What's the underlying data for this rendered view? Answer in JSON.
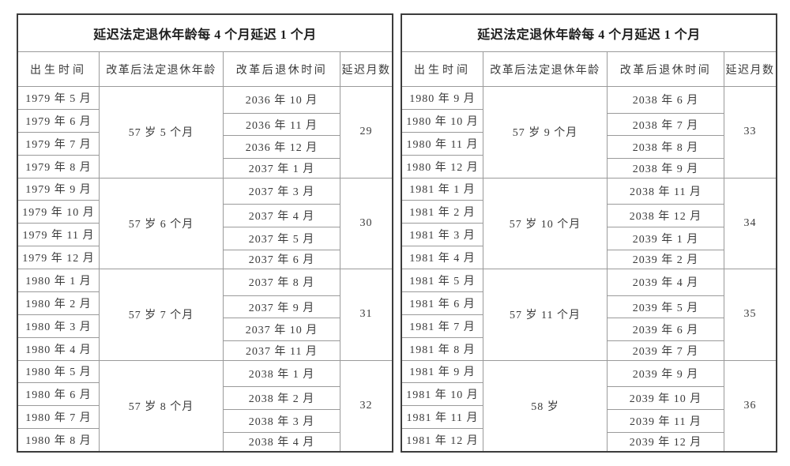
{
  "page": {
    "background": "#ffffff",
    "outer_border_color": "#3c3c3c",
    "grid_line_color": "#9a9a9a",
    "text_color": "#3a3a3a"
  },
  "tables": [
    {
      "title": "延迟法定退休年龄每 4 个月延迟 1 个月",
      "columns": [
        "出生时间",
        "改革后法定退休年龄",
        "改革后退休时间",
        "延迟月数"
      ],
      "groups": [
        {
          "births": [
            "1979 年 5 月",
            "1979 年 6 月",
            "1979 年 7 月",
            "1979 年 8 月"
          ],
          "age": "57 岁 5 个月",
          "retirements": [
            "2036 年 10 月",
            "2036 年 11 月",
            "2036 年 12 月",
            "2037 年 1 月"
          ],
          "delay_months": "29"
        },
        {
          "births": [
            "1979 年 9 月",
            "1979 年 10 月",
            "1979 年 11 月",
            "1979 年 12 月"
          ],
          "age": "57 岁 6 个月",
          "retirements": [
            "2037 年 3 月",
            "2037 年 4 月",
            "2037 年 5 月",
            "2037 年 6 月"
          ],
          "delay_months": "30"
        },
        {
          "births": [
            "1980 年 1 月",
            "1980 年 2 月",
            "1980 年 3 月",
            "1980 年 4 月"
          ],
          "age": "57 岁 7 个月",
          "retirements": [
            "2037 年 8 月",
            "2037 年 9 月",
            "2037 年 10 月",
            "2037 年 11 月"
          ],
          "delay_months": "31"
        },
        {
          "births": [
            "1980 年 5 月",
            "1980 年 6 月",
            "1980 年 7 月",
            "1980 年 8 月"
          ],
          "age": "57 岁 8 个月",
          "retirements": [
            "2038 年 1 月",
            "2038 年 2 月",
            "2038 年 3 月",
            "2038 年 4 月"
          ],
          "delay_months": "32"
        }
      ]
    },
    {
      "title": "延迟法定退休年龄每 4 个月延迟 1 个月",
      "columns": [
        "出生时间",
        "改革后法定退休年龄",
        "改革后退休时间",
        "延迟月数"
      ],
      "groups": [
        {
          "births": [
            "1980 年 9 月",
            "1980 年 10 月",
            "1980 年 11 月",
            "1980 年 12 月"
          ],
          "age": "57 岁 9 个月",
          "retirements": [
            "2038 年 6 月",
            "2038 年 7 月",
            "2038 年 8 月",
            "2038 年 9 月"
          ],
          "delay_months": "33"
        },
        {
          "births": [
            "1981 年 1 月",
            "1981 年 2 月",
            "1981 年 3 月",
            "1981 年 4 月"
          ],
          "age": "57 岁 10 个月",
          "retirements": [
            "2038 年 11 月",
            "2038 年 12 月",
            "2039 年 1 月",
            "2039 年 2 月"
          ],
          "delay_months": "34"
        },
        {
          "births": [
            "1981 年 5 月",
            "1981 年 6 月",
            "1981 年 7 月",
            "1981 年 8 月"
          ],
          "age": "57 岁 11 个月",
          "retirements": [
            "2039 年 4 月",
            "2039 年 5 月",
            "2039 年 6 月",
            "2039 年 7 月"
          ],
          "delay_months": "35"
        },
        {
          "births": [
            "1981 年 9 月",
            "1981 年 10 月",
            "1981 年 11 月",
            "1981 年 12 月"
          ],
          "age": "58 岁",
          "retirements": [
            "2039 年 9 月",
            "2039 年 10 月",
            "2039 年 11 月",
            "2039 年 12 月"
          ],
          "delay_months": "36"
        }
      ]
    }
  ]
}
